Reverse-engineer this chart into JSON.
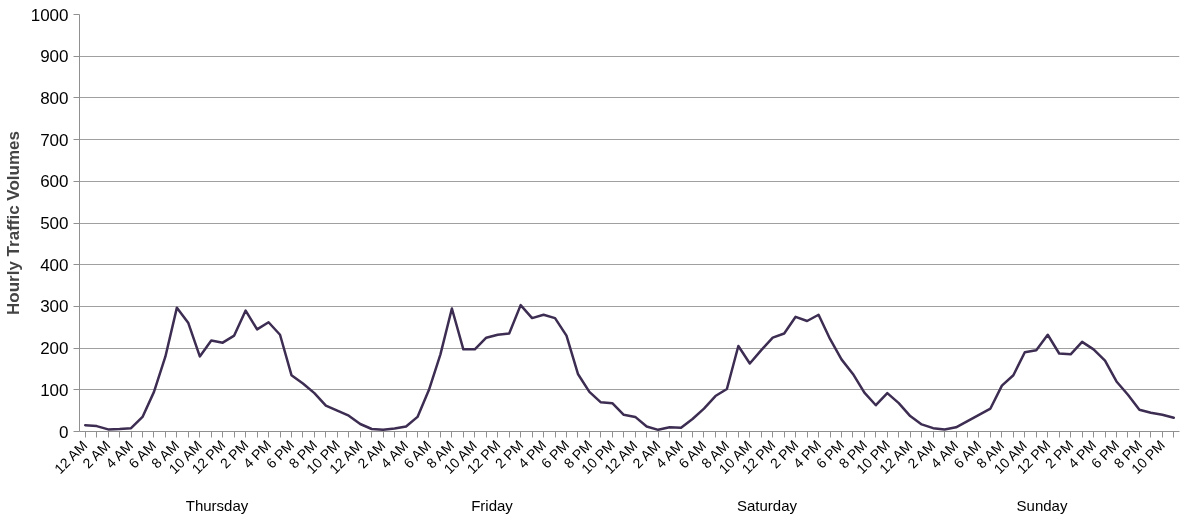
{
  "chart_data": {
    "type": "line",
    "ylabel": "Hourly Traffic Volumes",
    "categories": [
      "12 AM",
      null,
      "2 AM",
      null,
      "4 AM",
      null,
      "6 AM",
      null,
      "8 AM",
      null,
      "10 AM",
      null,
      "12 PM",
      null,
      "2 PM",
      null,
      "4 PM",
      null,
      "6 PM",
      null,
      "8 PM",
      null,
      "10 PM",
      null,
      "12 AM",
      null,
      "2 AM",
      null,
      "4 AM",
      null,
      "6 AM",
      null,
      "8 AM",
      null,
      "10 AM",
      null,
      "12 PM",
      null,
      "2 PM",
      null,
      "4 PM",
      null,
      "6 PM",
      null,
      "8 PM",
      null,
      "10 PM",
      null,
      "12 AM",
      null,
      "2 AM",
      null,
      "4 AM",
      null,
      "6 AM",
      null,
      "8 AM",
      null,
      "10 AM",
      null,
      "12 PM",
      null,
      "2 PM",
      null,
      "4 PM",
      null,
      "6 PM",
      null,
      "8 PM",
      null,
      "10 PM",
      null,
      "12 AM",
      null,
      "2 AM",
      null,
      "4 AM",
      null,
      "6 AM",
      null,
      "8 AM",
      null,
      "10 AM",
      null,
      "12 PM",
      null,
      "2 PM",
      null,
      "4 PM",
      null,
      "6 PM",
      null,
      "8 PM",
      null,
      "10 PM",
      null
    ],
    "series": [
      {
        "color": "#3d2d52",
        "values": [
          15,
          13,
          5,
          6,
          8,
          35,
          95,
          180,
          297,
          260,
          180,
          218,
          213,
          230,
          290,
          245,
          262,
          232,
          135,
          115,
          92,
          62,
          50,
          38,
          18,
          6,
          4,
          7,
          12,
          35,
          100,
          185,
          295,
          197,
          197,
          225,
          232,
          235,
          303,
          272,
          280,
          272,
          230,
          138,
          95,
          70,
          68,
          40,
          35,
          12,
          4,
          10,
          9,
          30,
          55,
          85,
          102,
          205,
          163,
          195,
          225,
          235,
          275,
          265,
          280,
          222,
          173,
          138,
          93,
          63,
          92,
          68,
          37,
          17,
          8,
          5,
          10,
          25,
          40,
          55,
          110,
          135,
          190,
          195,
          232,
          187,
          185,
          215,
          197,
          170,
          120,
          88,
          52,
          45,
          40,
          33
        ]
      }
    ],
    "annotations": [
      "Thursday",
      "Friday",
      "Saturday",
      "Sunday"
    ],
    "ylim": [
      0,
      1000
    ],
    "yticks": [
      0,
      100,
      200,
      300,
      400,
      500,
      600,
      700,
      800,
      900,
      1000
    ],
    "grid": "y",
    "marker": "none",
    "line_style": "solid"
  }
}
